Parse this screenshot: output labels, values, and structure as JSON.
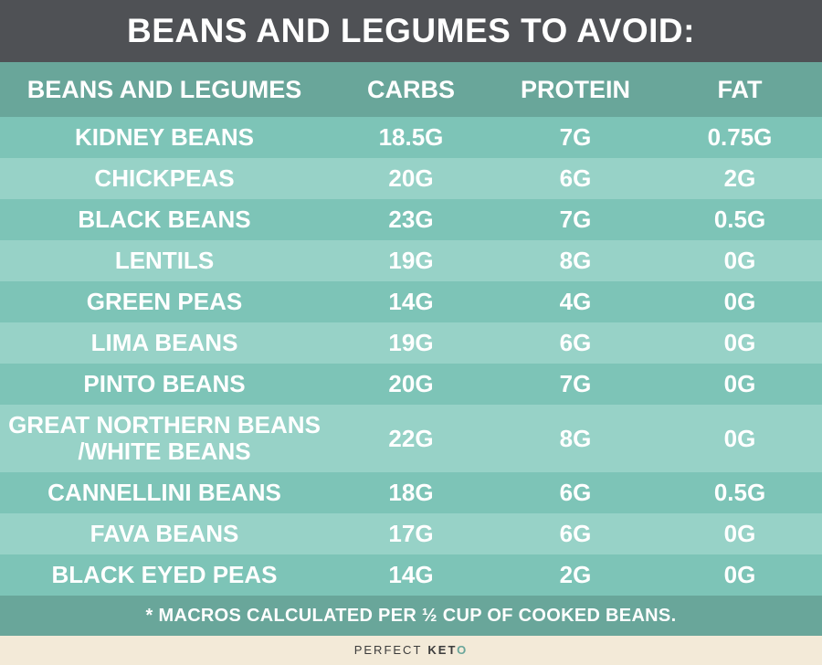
{
  "title": "BEANS AND LEGUMES TO AVOID:",
  "headers": [
    "BEANS AND LEGUMES",
    "CARBS",
    "PROTEIN",
    "FAT"
  ],
  "rows": [
    {
      "name": [
        "KIDNEY BEANS"
      ],
      "carbs": "18.5G",
      "protein": "7G",
      "fat": "0.75G"
    },
    {
      "name": [
        "CHICKPEAS"
      ],
      "carbs": "20G",
      "protein": "6G",
      "fat": "2G"
    },
    {
      "name": [
        "BLACK BEANS"
      ],
      "carbs": "23G",
      "protein": "7G",
      "fat": "0.5G"
    },
    {
      "name": [
        "LENTILS"
      ],
      "carbs": "19G",
      "protein": "8G",
      "fat": "0G"
    },
    {
      "name": [
        "GREEN PEAS"
      ],
      "carbs": "14G",
      "protein": "4G",
      "fat": "0G"
    },
    {
      "name": [
        "LIMA BEANS"
      ],
      "carbs": "19G",
      "protein": "6G",
      "fat": "0G"
    },
    {
      "name": [
        "PINTO BEANS"
      ],
      "carbs": "20G",
      "protein": "7G",
      "fat": "0G"
    },
    {
      "name": [
        "GREAT NORTHERN BEANS",
        "/WHITE BEANS"
      ],
      "carbs": "22G",
      "protein": "8G",
      "fat": "0G"
    },
    {
      "name": [
        "CANNELLINI BEANS"
      ],
      "carbs": "18G",
      "protein": "6G",
      "fat": "0.5G"
    },
    {
      "name": [
        "FAVA BEANS"
      ],
      "carbs": "17G",
      "protein": "6G",
      "fat": "0G"
    },
    {
      "name": [
        "BLACK EYED PEAS"
      ],
      "carbs": "14G",
      "protein": "2G",
      "fat": "0G"
    }
  ],
  "footnote": "* MACROS CALCULATED PER ½ CUP OF COOKED BEANS.",
  "brand": {
    "word1": "PERFECT",
    "word2_main": "KET",
    "word2_accent": "O"
  },
  "colors": {
    "title_bg": "#4f5155",
    "header_bg": "#69a69a",
    "row_dark": "#7dc4b7",
    "row_light": "#97d2c7",
    "footer_bg": "#f3ead8"
  }
}
